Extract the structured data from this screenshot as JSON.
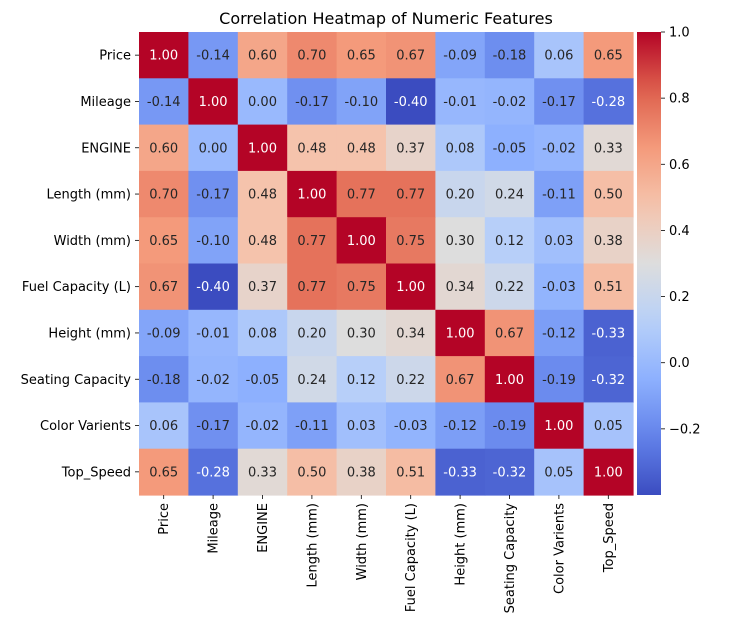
{
  "chart_data": {
    "type": "heatmap",
    "title": "Correlation Heatmap of Numeric Features",
    "xlabel": "",
    "ylabel": "",
    "colormap": "coolwarm",
    "colors": {
      "low": "#3b4cc0",
      "mid": "#dddddd",
      "high": "#b40426"
    },
    "vmin": -0.4,
    "vmax": 1.0,
    "x_categories": [
      "Price",
      "Mileage",
      "ENGINE",
      "Length (mm)",
      "Width (mm)",
      "Fuel Capacity (L)",
      "Height (mm)",
      "Seating Capacity",
      "Color Varients",
      "Top_Speed"
    ],
    "y_categories": [
      "Price",
      "Mileage",
      "ENGINE",
      "Length (mm)",
      "Width (mm)",
      "Fuel Capacity (L)",
      "Height (mm)",
      "Seating Capacity",
      "Color Varients",
      "Top_Speed"
    ],
    "values": [
      [
        1.0,
        -0.14,
        0.6,
        0.7,
        0.65,
        0.67,
        -0.09,
        -0.18,
        0.06,
        0.65
      ],
      [
        -0.14,
        1.0,
        0.0,
        -0.17,
        -0.1,
        -0.4,
        -0.01,
        -0.02,
        -0.17,
        -0.28
      ],
      [
        0.6,
        0.0,
        1.0,
        0.48,
        0.48,
        0.37,
        0.08,
        -0.05,
        -0.02,
        0.33
      ],
      [
        0.7,
        -0.17,
        0.48,
        1.0,
        0.77,
        0.77,
        0.2,
        0.24,
        -0.11,
        0.5
      ],
      [
        0.65,
        -0.1,
        0.48,
        0.77,
        1.0,
        0.75,
        0.3,
        0.12,
        0.03,
        0.38
      ],
      [
        0.67,
        -0.4,
        0.37,
        0.77,
        0.75,
        1.0,
        0.34,
        0.22,
        -0.03,
        0.51
      ],
      [
        -0.09,
        -0.01,
        0.08,
        0.2,
        0.3,
        0.34,
        1.0,
        0.67,
        -0.12,
        -0.33
      ],
      [
        -0.18,
        -0.02,
        -0.05,
        0.24,
        0.12,
        0.22,
        0.67,
        1.0,
        -0.19,
        -0.32
      ],
      [
        0.06,
        -0.17,
        -0.02,
        -0.11,
        0.03,
        -0.03,
        -0.12,
        -0.19,
        1.0,
        0.05
      ],
      [
        0.65,
        -0.28,
        0.33,
        0.5,
        0.38,
        0.51,
        -0.33,
        -0.32,
        0.05,
        1.0
      ]
    ],
    "colorbar": {
      "ticks": [
        1.0,
        0.8,
        0.6,
        0.4,
        0.2,
        0.0,
        -0.2
      ],
      "tick_labels": [
        "1.0",
        "0.8",
        "0.6",
        "0.4",
        "0.2",
        "0.0",
        "−0.2"
      ]
    }
  }
}
